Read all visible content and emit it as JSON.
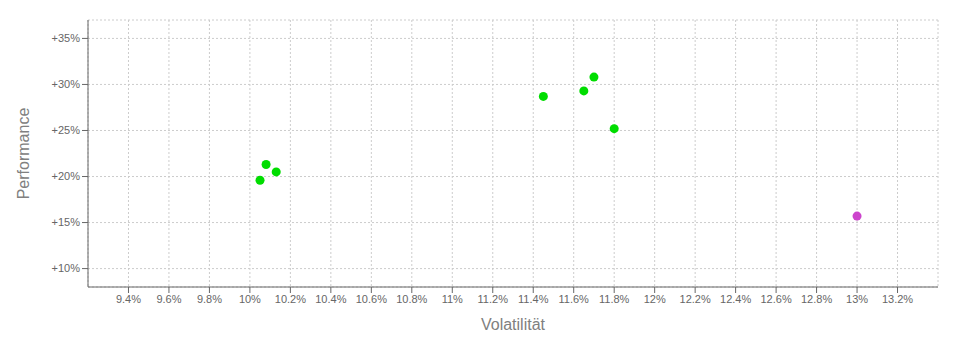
{
  "chart_data": {
    "type": "scatter",
    "xlabel": "Volatilität",
    "ylabel": "Performance",
    "xlim": [
      0.092,
      0.134
    ],
    "ylim": [
      0.08,
      0.37
    ],
    "xticks": [
      {
        "value": 0.094,
        "label": "9.4%"
      },
      {
        "value": 0.096,
        "label": "9.6%"
      },
      {
        "value": 0.098,
        "label": "9.8%"
      },
      {
        "value": 0.1,
        "label": "10%"
      },
      {
        "value": 0.102,
        "label": "10.2%"
      },
      {
        "value": 0.104,
        "label": "10.4%"
      },
      {
        "value": 0.106,
        "label": "10.6%"
      },
      {
        "value": 0.108,
        "label": "10.8%"
      },
      {
        "value": 0.11,
        "label": "11%"
      },
      {
        "value": 0.112,
        "label": "11.2%"
      },
      {
        "value": 0.114,
        "label": "11.4%"
      },
      {
        "value": 0.116,
        "label": "11.6%"
      },
      {
        "value": 0.118,
        "label": "11.8%"
      },
      {
        "value": 0.12,
        "label": "12%"
      },
      {
        "value": 0.122,
        "label": "12.2%"
      },
      {
        "value": 0.124,
        "label": "12.4%"
      },
      {
        "value": 0.126,
        "label": "12.6%"
      },
      {
        "value": 0.128,
        "label": "12.8%"
      },
      {
        "value": 0.13,
        "label": "13%"
      },
      {
        "value": 0.132,
        "label": "13.2%"
      }
    ],
    "yticks": [
      {
        "value": 0.1,
        "label": "+10%"
      },
      {
        "value": 0.15,
        "label": "+15%"
      },
      {
        "value": 0.2,
        "label": "+20%"
      },
      {
        "value": 0.25,
        "label": "+25%"
      },
      {
        "value": 0.3,
        "label": "+30%"
      },
      {
        "value": 0.35,
        "label": "+35%"
      }
    ],
    "grid": true,
    "marker": "circle",
    "series": [
      {
        "color": "#00dd00",
        "x": [
          0.1008,
          0.1013,
          0.1005,
          0.1145,
          0.1165,
          0.117,
          0.118
        ],
        "values": [
          0.213,
          0.205,
          0.196,
          0.287,
          0.293,
          0.308,
          0.252
        ]
      },
      {
        "color": "#cc44cc",
        "x": [
          0.13
        ],
        "values": [
          0.157
        ]
      }
    ]
  }
}
